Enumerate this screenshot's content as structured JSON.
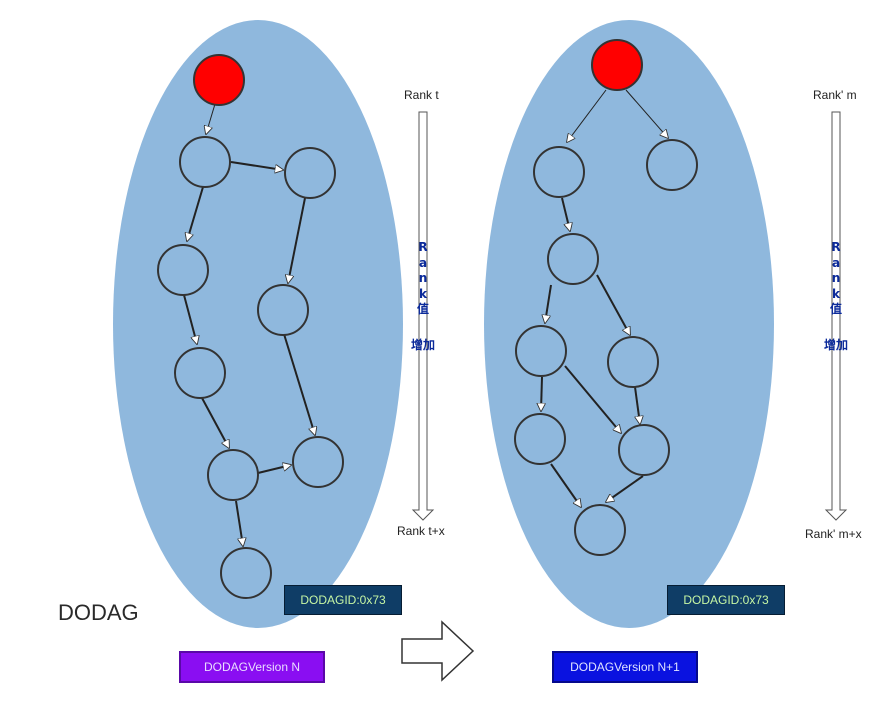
{
  "left_panel": {
    "rank_top": "Rank t",
    "rank_bottom": "Rank t+x",
    "rank_axis_text": [
      "R",
      "a",
      "n",
      "k",
      "值"
    ],
    "rank_axis_text2": "增加",
    "dodagid": "DODAGID:0x73",
    "version": "DODAGVersion N",
    "version_color": "#8a0ef2"
  },
  "right_panel": {
    "rank_top": "Rank' m",
    "rank_bottom": "Rank' m+x",
    "rank_axis_text": [
      "R",
      "a",
      "n",
      "k",
      "值"
    ],
    "rank_axis_text2": "增加",
    "dodagid": "DODAGID:0x73",
    "version": "DODAGVersion N+1",
    "version_color": "#0a12e0"
  },
  "title": "DODAG",
  "colors": {
    "ellipse": "#8fb8dd",
    "node": "#8fb8dd",
    "root": "#ff0000",
    "dodagid_bg": "#0f3d66"
  }
}
